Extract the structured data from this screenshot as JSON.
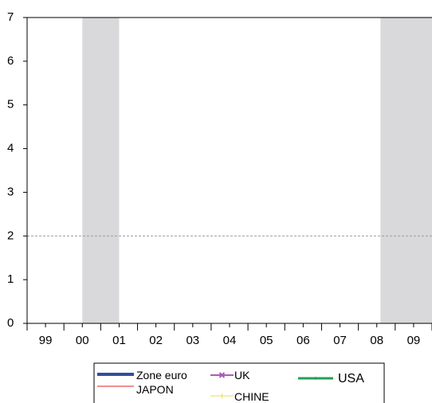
{
  "chart_data": {
    "type": "line",
    "title": "",
    "xlabel": "",
    "ylabel": "",
    "x_tick_labels": [
      "99",
      "00",
      "01",
      "02",
      "03",
      "04",
      "05",
      "06",
      "07",
      "08",
      "09"
    ],
    "xlim": [
      1999,
      2010
    ],
    "ylim": [
      0,
      7
    ],
    "y_ticks": [
      0,
      1,
      2,
      3,
      4,
      5,
      6,
      7
    ],
    "reference_line": {
      "y": 2,
      "style": "dashed",
      "color": "#999999"
    },
    "shaded_periods": [
      {
        "start": 2000.5,
        "end": 2001.5
      },
      {
        "start": 2008.6,
        "end": 2010
      }
    ],
    "shade_color": "#d9d9db",
    "series": [
      {
        "name": "Zone euro",
        "color": "#2e4f9e",
        "marker": "none"
      },
      {
        "name": "UK",
        "color": "#a85cb8",
        "marker": "x"
      },
      {
        "name": "USA",
        "color": "#23a056",
        "marker": "dot"
      },
      {
        "name": "JAPON",
        "color": "#e84c4c",
        "marker": "none"
      },
      {
        "name": "CHINE",
        "color": "#f2dc3a",
        "marker": "plus"
      }
    ],
    "grid": false,
    "legend_position": "bottom"
  }
}
